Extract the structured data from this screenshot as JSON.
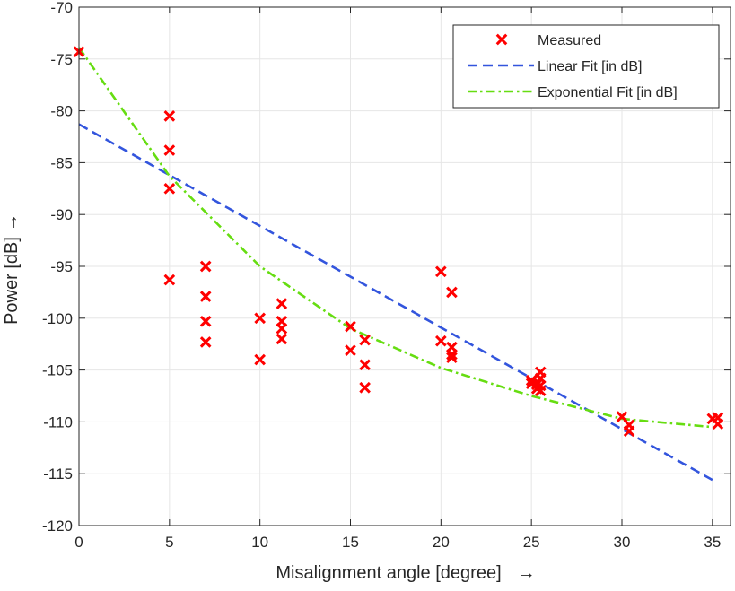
{
  "chart_data": {
    "type": "scatter",
    "title": "",
    "xlabel": "Misalignment angle [degree]",
    "ylabel": "Power [dB]",
    "arrow_glyph": "→",
    "xlim": [
      0,
      36
    ],
    "ylim": [
      -120,
      -70
    ],
    "xticks": [
      0,
      5,
      10,
      15,
      20,
      25,
      30,
      35
    ],
    "yticks": [
      -120,
      -115,
      -110,
      -105,
      -100,
      -95,
      -90,
      -85,
      -80,
      -75,
      -70
    ],
    "grid": true,
    "legend_position": "top-right",
    "series": [
      {
        "name": "Measured",
        "kind": "marker",
        "marker": "x",
        "color": "#ff0000",
        "points": [
          [
            0,
            -74.3
          ],
          [
            5,
            -80.5
          ],
          [
            5,
            -83.8
          ],
          [
            5,
            -87.5
          ],
          [
            5,
            -96.3
          ],
          [
            7,
            -95.0
          ],
          [
            7,
            -97.9
          ],
          [
            7,
            -100.3
          ],
          [
            7,
            -102.3
          ],
          [
            10,
            -100.0
          ],
          [
            10,
            -104.0
          ],
          [
            11.2,
            -98.6
          ],
          [
            11.2,
            -100.3
          ],
          [
            11.2,
            -101.0
          ],
          [
            11.2,
            -102.0
          ],
          [
            15,
            -100.8
          ],
          [
            15,
            -103.1
          ],
          [
            15.8,
            -102.1
          ],
          [
            15.8,
            -104.5
          ],
          [
            15.8,
            -106.7
          ],
          [
            20,
            -95.5
          ],
          [
            20,
            -102.2
          ],
          [
            20.6,
            -97.5
          ],
          [
            20.6,
            -102.8
          ],
          [
            20.6,
            -103.5
          ],
          [
            20.6,
            -103.8
          ],
          [
            25,
            -106.0
          ],
          [
            25,
            -106.3
          ],
          [
            25.3,
            -106.8
          ],
          [
            25.3,
            -106.4
          ],
          [
            25.5,
            -105.2
          ],
          [
            25.5,
            -105.8
          ],
          [
            25.5,
            -106.5
          ],
          [
            25.5,
            -107.0
          ],
          [
            30,
            -109.5
          ],
          [
            30.4,
            -110.3
          ],
          [
            30.4,
            -110.9
          ],
          [
            35,
            -109.7
          ],
          [
            35.3,
            -110.2
          ],
          [
            35.3,
            -109.6
          ]
        ]
      },
      {
        "name": "Linear Fit [in dB]",
        "kind": "line",
        "dash": "dashed",
        "color": "#3355dd",
        "points": [
          [
            0,
            -81.3
          ],
          [
            35,
            -115.6
          ]
        ]
      },
      {
        "name": "Exponential Fit [in dB]",
        "kind": "line",
        "dash": "dashdot",
        "color": "#66dd11",
        "points": [
          [
            0,
            -73.9
          ],
          [
            5,
            -86.3
          ],
          [
            10,
            -95.0
          ],
          [
            15,
            -101.0
          ],
          [
            20,
            -104.8
          ],
          [
            25,
            -107.5
          ],
          [
            30,
            -109.7
          ],
          [
            35,
            -110.5
          ]
        ]
      }
    ]
  }
}
